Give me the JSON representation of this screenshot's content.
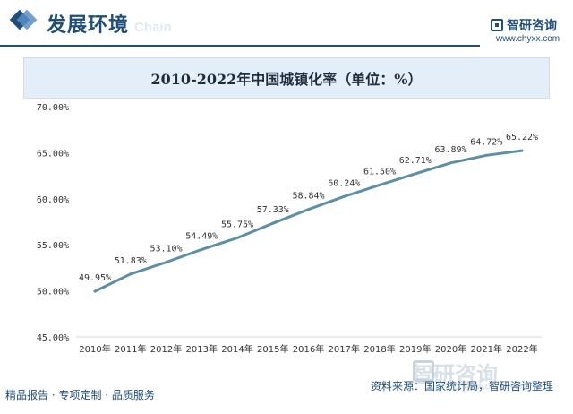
{
  "header": {
    "section_title": "发展环境",
    "watermark": "Chain",
    "brand_name": "智研咨询",
    "brand_url": "www.chyxx.com"
  },
  "chart_data": {
    "type": "line",
    "title": "2010-2022年中国城镇化率（单位：%）",
    "categories": [
      "2010年",
      "2011年",
      "2012年",
      "2013年",
      "2014年",
      "2015年",
      "2016年",
      "2017年",
      "2018年",
      "2019年",
      "2020年",
      "2021年",
      "2022年"
    ],
    "values": [
      49.95,
      51.83,
      53.1,
      54.49,
      55.75,
      57.33,
      58.84,
      60.24,
      61.5,
      62.71,
      63.89,
      64.72,
      65.22
    ],
    "value_labels": [
      "49.95%",
      "51.83%",
      "53.10%",
      "54.49%",
      "55.75%",
      "57.33%",
      "58.84%",
      "60.24%",
      "61.50%",
      "62.71%",
      "63.89%",
      "64.72%",
      "65.22%"
    ],
    "yticks": [
      "45.00%",
      "50.00%",
      "55.00%",
      "60.00%",
      "65.00%",
      "70.00%"
    ],
    "ylim": [
      45,
      70
    ],
    "xlabel": "",
    "ylabel": "",
    "grid": false,
    "line_color": "#5f8fa6"
  },
  "footer": {
    "left_text": "精品报告 · 专项定制 · 品质服务",
    "source_text": "资料来源：国家统计局，智研咨询整理",
    "watermark_name": "智研咨询",
    "watermark_url": "www.chyxx.com"
  }
}
